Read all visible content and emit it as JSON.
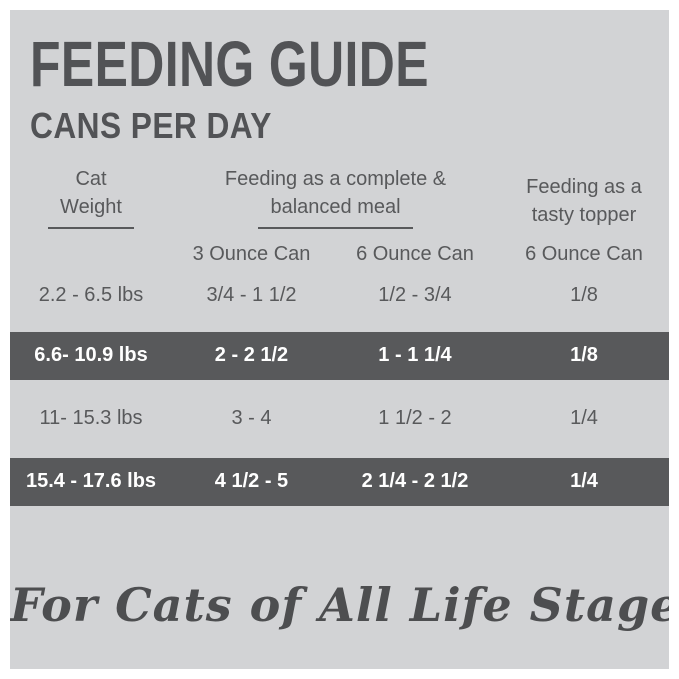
{
  "colors": {
    "background": "#ffffff",
    "panel": "#d2d3d5",
    "band": "#58595b",
    "text": "#58595b",
    "band_text": "#ffffff"
  },
  "header": {
    "title": "FEEDING GUIDE",
    "subtitle": "CANS PER DAY"
  },
  "table": {
    "groups": [
      {
        "line1": "Cat",
        "line2": "Weight"
      },
      {
        "line1": "Feeding as a complete &",
        "line2": "balanced meal"
      },
      {
        "line1": "Feeding as a",
        "line2": "tasty topper"
      }
    ],
    "subheaders": [
      "3 Ounce Can",
      "6 Ounce Can",
      "6 Ounce Can"
    ],
    "rows": [
      {
        "weight": "2.2 - 6.5 lbs",
        "meal_3oz": "3/4 - 1 1/2",
        "meal_6oz": "1/2 - 3/4",
        "topper_6oz": "1/8",
        "highlight": false
      },
      {
        "weight": "6.6- 10.9 lbs",
        "meal_3oz": "2 - 2 1/2",
        "meal_6oz": "1 - 1 1/4",
        "topper_6oz": "1/8",
        "highlight": true
      },
      {
        "weight": "11- 15.3 lbs",
        "meal_3oz": "3 - 4",
        "meal_6oz": "1 1/2 - 2",
        "topper_6oz": "1/4",
        "highlight": false
      },
      {
        "weight": "15.4 - 17.6 lbs",
        "meal_3oz": "4 1/2 - 5",
        "meal_6oz": "2 1/4 - 2 1/2",
        "topper_6oz": "1/4",
        "highlight": true
      }
    ]
  },
  "footer": {
    "tagline": "For Cats of All Life Stages"
  },
  "chart_data": {
    "type": "table",
    "title": "FEEDING GUIDE — CANS PER DAY",
    "columns": [
      "Cat Weight",
      "Feeding as a complete & balanced meal — 3 Ounce Can",
      "Feeding as a complete & balanced meal — 6 Ounce Can",
      "Feeding as a tasty topper — 6 Ounce Can"
    ],
    "rows": [
      [
        "2.2 - 6.5 lbs",
        "3/4 - 1 1/2",
        "1/2 - 3/4",
        "1/8"
      ],
      [
        "6.6- 10.9 lbs",
        "2 - 2 1/2",
        "1 - 1 1/4",
        "1/8"
      ],
      [
        "11- 15.3 lbs",
        "3 - 4",
        "1 1/2 - 2",
        "1/4"
      ],
      [
        "15.4 - 17.6 lbs",
        "4 1/2 - 5",
        "2 1/4 - 2 1/2",
        "1/4"
      ]
    ],
    "highlighted_rows": [
      1,
      3
    ],
    "footnote": "For Cats of All Life Stages"
  }
}
